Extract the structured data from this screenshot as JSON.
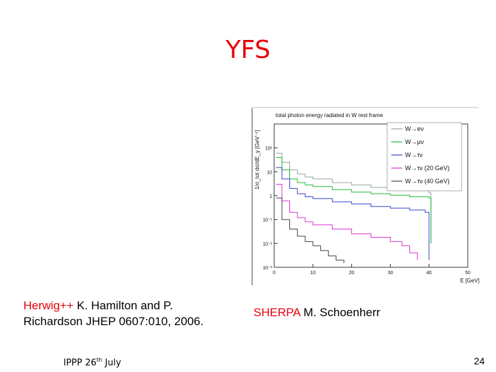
{
  "slide": {
    "title": "YFS",
    "cite_left_red": "Herwig++",
    "cite_left_line1": " K. Hamilton and P.",
    "cite_left_line2": "Richardson JHEP 0607:010, 2006.",
    "cite_right_red": "SHERPA",
    "cite_right_rest": " M. Schoenherr",
    "footer_text": "IPPP 26",
    "footer_sup": "th",
    "footer_text2": " July",
    "page_number": "24"
  },
  "chart_data": {
    "type": "line",
    "title": "total photon energy radiated in W rest frame",
    "xlabel": "E [GeV]",
    "ylabel": "1/σ_tot dσ/dE_γ [GeV⁻¹]",
    "log_y": true,
    "xlim": [
      0,
      50
    ],
    "ylim": [
      0.001,
      1000
    ],
    "x_ticks": [
      "0",
      "10",
      "20",
      "30",
      "40",
      "50"
    ],
    "y_ticks": [
      "10²",
      "10",
      "1",
      "10⁻¹",
      "10⁻²",
      "10⁻³"
    ],
    "legend_position": "top-right",
    "series": [
      {
        "name": "W→eν",
        "color": "#9aa3a3",
        "x": [
          0.5,
          2,
          4,
          6,
          8,
          10,
          15,
          20,
          25,
          30,
          35,
          40,
          40.5
        ],
        "y": [
          60,
          25,
          12,
          8,
          6,
          5,
          3.5,
          2.8,
          2.2,
          1.8,
          1.6,
          1.3,
          0.01
        ]
      },
      {
        "name": "W→μν",
        "color": "#22bb33",
        "x": [
          0.5,
          2,
          4,
          6,
          8,
          10,
          15,
          20,
          25,
          30,
          35,
          40,
          40.5
        ],
        "y": [
          40,
          12,
          5,
          3.5,
          2.8,
          2.4,
          1.8,
          1.4,
          1.2,
          1.05,
          0.9,
          0.8,
          0.01
        ]
      },
      {
        "name": "W→τν",
        "color": "#3344cc",
        "x": [
          0.5,
          2,
          4,
          6,
          8,
          10,
          15,
          20,
          25,
          30,
          35,
          39,
          40
        ],
        "y": [
          15,
          5,
          2,
          1.2,
          0.9,
          0.75,
          0.55,
          0.45,
          0.35,
          0.3,
          0.25,
          0.2,
          0.002
        ]
      },
      {
        "name": "W→τν (20 GeV)",
        "color": "#dd33cc",
        "x": [
          0.5,
          2,
          4,
          6,
          8,
          10,
          15,
          20,
          25,
          30,
          33,
          35,
          37
        ],
        "y": [
          3,
          0.6,
          0.2,
          0.12,
          0.08,
          0.06,
          0.04,
          0.025,
          0.018,
          0.012,
          0.008,
          0.004,
          0.002
        ]
      },
      {
        "name": "W→τν (40 GeV)",
        "color": "#444444",
        "x": [
          0.5,
          2,
          4,
          6,
          8,
          10,
          12,
          14,
          16,
          18
        ],
        "y": [
          0.8,
          0.1,
          0.04,
          0.02,
          0.012,
          0.008,
          0.005,
          0.003,
          0.002,
          0.0015
        ]
      }
    ]
  }
}
